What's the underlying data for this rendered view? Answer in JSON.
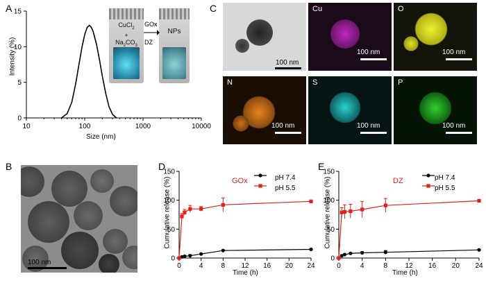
{
  "panel_labels": {
    "a": "A",
    "b": "B",
    "c": "C",
    "d": "D",
    "e": "E"
  },
  "panel_a": {
    "vial_left_lines": [
      "CuCl",
      "2",
      "+",
      "Na",
      "2",
      "CO",
      "3"
    ],
    "arrow_top": "GOx",
    "arrow_bottom": "DZ",
    "vial_right": "NPs"
  },
  "panel_b": {
    "scale_bar": "100 nm"
  },
  "panel_c": {
    "tiles": [
      {
        "element": "",
        "scale": "100 nm",
        "color": "#cccccc"
      },
      {
        "element": "Cu",
        "scale": "100 nm",
        "color": "#d62ad6"
      },
      {
        "element": "O",
        "scale": "100 nm",
        "color": "#e6e62a"
      },
      {
        "element": "N",
        "scale": "100 nm",
        "color": "#e57a1e"
      },
      {
        "element": "S",
        "scale": "100 nm",
        "color": "#2ad6d6"
      },
      {
        "element": "P",
        "scale": "100 nm",
        "color": "#33cc33"
      }
    ]
  },
  "chart_data": [
    {
      "type": "line",
      "panel": "A",
      "title": "",
      "xlabel": "Size (nm)",
      "ylabel": "Intensity (%)",
      "xscale": "log",
      "xlim": [
        10,
        10000
      ],
      "ylim": [
        0,
        15
      ],
      "xticks": [
        "10",
        "100",
        "1000",
        "10000"
      ],
      "yticks": [
        "0",
        "5",
        "10",
        "15"
      ],
      "series": [
        {
          "color": "#000000",
          "x": [
            40,
            50,
            60,
            70,
            80,
            90,
            100,
            110,
            120,
            130,
            140,
            160,
            180,
            200,
            230,
            260,
            300,
            350
          ],
          "y": [
            0,
            0.6,
            2.2,
            4.8,
            7.6,
            10.0,
            11.7,
            12.7,
            13.0,
            12.7,
            12.1,
            10.3,
            8.1,
            5.9,
            3.4,
            1.6,
            0.5,
            0
          ]
        }
      ]
    },
    {
      "type": "line",
      "panel": "D",
      "title": "GOx",
      "xlabel": "Time (h)",
      "ylabel": "Cumulative release (%)",
      "xlim": [
        0,
        24
      ],
      "ylim": [
        0,
        150
      ],
      "xticks": [
        "0",
        "4",
        "8",
        "12",
        "16",
        "20",
        "24"
      ],
      "yticks": [
        "0",
        "50",
        "100",
        "150"
      ],
      "legend_position": "top-right",
      "series": [
        {
          "name": "pH 7.4",
          "color": "#000000",
          "marker": "circle",
          "x": [
            0,
            0.5,
            1,
            2,
            4,
            8,
            24
          ],
          "y": [
            0,
            2,
            3,
            4,
            7,
            13,
            15
          ],
          "err": [
            0,
            1,
            1,
            2,
            1,
            1,
            1
          ]
        },
        {
          "name": "pH 5.5",
          "color": "#e0201c",
          "marker": "square",
          "x": [
            0,
            0.5,
            1,
            2,
            4,
            8,
            24
          ],
          "y": [
            0,
            72,
            79,
            85,
            85,
            92,
            98
          ],
          "err": [
            0,
            5,
            5,
            6,
            4,
            12,
            2
          ]
        }
      ]
    },
    {
      "type": "line",
      "panel": "E",
      "title": "DZ",
      "xlabel": "Time (h)",
      "ylabel": "Cumulative release (%)",
      "xlim": [
        0,
        24
      ],
      "ylim": [
        0,
        150
      ],
      "xticks": [
        "0",
        "4",
        "8",
        "12",
        "16",
        "20",
        "24"
      ],
      "yticks": [
        "0",
        "50",
        "100",
        "150"
      ],
      "legend_position": "top-right",
      "series": [
        {
          "name": "pH 7.4",
          "color": "#000000",
          "marker": "circle",
          "x": [
            0,
            0.5,
            1,
            2,
            4,
            8,
            24
          ],
          "y": [
            0,
            4,
            6,
            8,
            9,
            10,
            14
          ],
          "err": [
            0,
            1,
            1,
            1,
            2,
            3,
            1
          ]
        },
        {
          "name": "pH 5.5",
          "color": "#e0201c",
          "marker": "square",
          "x": [
            0,
            0.5,
            1,
            2,
            4,
            8,
            24
          ],
          "y": [
            0,
            79,
            80,
            81,
            84,
            91,
            99
          ],
          "err": [
            0,
            8,
            12,
            12,
            14,
            12,
            2
          ]
        }
      ]
    }
  ]
}
